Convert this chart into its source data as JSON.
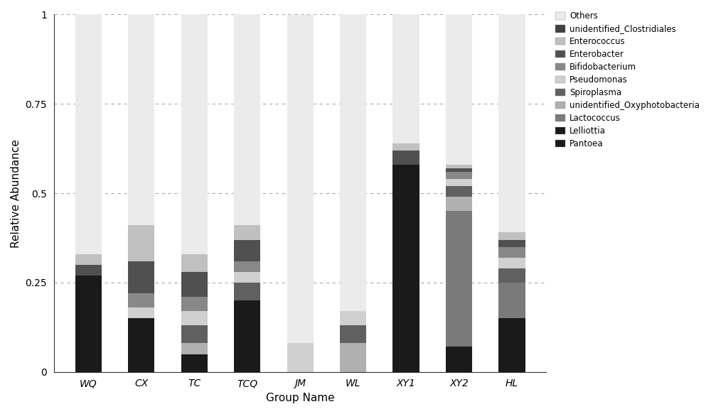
{
  "groups": [
    "WQ",
    "CX",
    "TC",
    "TCQ",
    "JM",
    "WL",
    "XY1",
    "XY2",
    "HL"
  ],
  "stack_order": [
    "Pantoea",
    "Lelliottia",
    "Lactococcus",
    "unidentified_Oxyphotobacteria",
    "Spiroplasma",
    "Pseudomonas",
    "Bifidobacterium",
    "Enterobacter",
    "Enterococcus",
    "unidentified_Clostridiales",
    "Others"
  ],
  "legend_order": [
    "Others",
    "unidentified_Clostridiales",
    "Enterococcus",
    "Enterobacter",
    "Bifidobacterium",
    "Pseudomonas",
    "Spiroplasma",
    "unidentified_Oxyphotobacteria",
    "Lactococcus",
    "Lelliottia",
    "Pantoea"
  ],
  "colors": {
    "Pantoea": "#1a1a1a",
    "Lelliottia": "#1a1a1a",
    "Lactococcus": "#7a7a7a",
    "unidentified_Oxyphotobacteria": "#b0b0b0",
    "Spiroplasma": "#606060",
    "Pseudomonas": "#d0d0d0",
    "Bifidobacterium": "#888888",
    "Enterobacter": "#505050",
    "Enterococcus": "#c0c0c0",
    "unidentified_Clostridiales": "#404040",
    "Others": "#ebebeb"
  },
  "data": {
    "Pantoea": [
      0.27,
      0.15,
      0.0,
      0.2,
      0.0,
      0.0,
      0.58,
      0.0,
      0.15
    ],
    "Lelliottia": [
      0.0,
      0.0,
      0.05,
      0.0,
      0.0,
      0.0,
      0.0,
      0.07,
      0.0
    ],
    "Lactococcus": [
      0.0,
      0.0,
      0.0,
      0.0,
      0.0,
      0.0,
      0.0,
      0.38,
      0.1
    ],
    "unidentified_Oxyphotobacteria": [
      0.0,
      0.0,
      0.03,
      0.0,
      0.0,
      0.08,
      0.0,
      0.04,
      0.0
    ],
    "Spiroplasma": [
      0.0,
      0.0,
      0.05,
      0.05,
      0.0,
      0.05,
      0.0,
      0.03,
      0.04
    ],
    "Pseudomonas": [
      0.0,
      0.03,
      0.04,
      0.03,
      0.08,
      0.04,
      0.0,
      0.02,
      0.03
    ],
    "Bifidobacterium": [
      0.0,
      0.04,
      0.04,
      0.03,
      0.0,
      0.0,
      0.0,
      0.02,
      0.03
    ],
    "Enterobacter": [
      0.03,
      0.09,
      0.07,
      0.06,
      0.0,
      0.0,
      0.04,
      0.01,
      0.02
    ],
    "Enterococcus": [
      0.03,
      0.1,
      0.05,
      0.04,
      0.0,
      0.0,
      0.02,
      0.01,
      0.02
    ],
    "unidentified_Clostridiales": [
      0.0,
      0.0,
      0.0,
      0.0,
      0.0,
      0.0,
      0.0,
      0.0,
      0.0
    ],
    "Others": [
      0.67,
      0.59,
      0.67,
      0.59,
      0.92,
      0.83,
      0.36,
      0.42,
      0.61
    ]
  },
  "xlabel": "Group Name",
  "ylabel": "Relative Abundance",
  "ylim": [
    0,
    1.0
  ],
  "yticks": [
    0,
    0.25,
    0.5,
    0.75,
    1
  ],
  "ytick_labels": [
    "0",
    "0.25",
    "0.5",
    "0.75",
    "1"
  ],
  "bar_width": 0.5,
  "background_color": "#ffffff",
  "figsize": [
    10.0,
    5.83
  ],
  "dpi": 100
}
